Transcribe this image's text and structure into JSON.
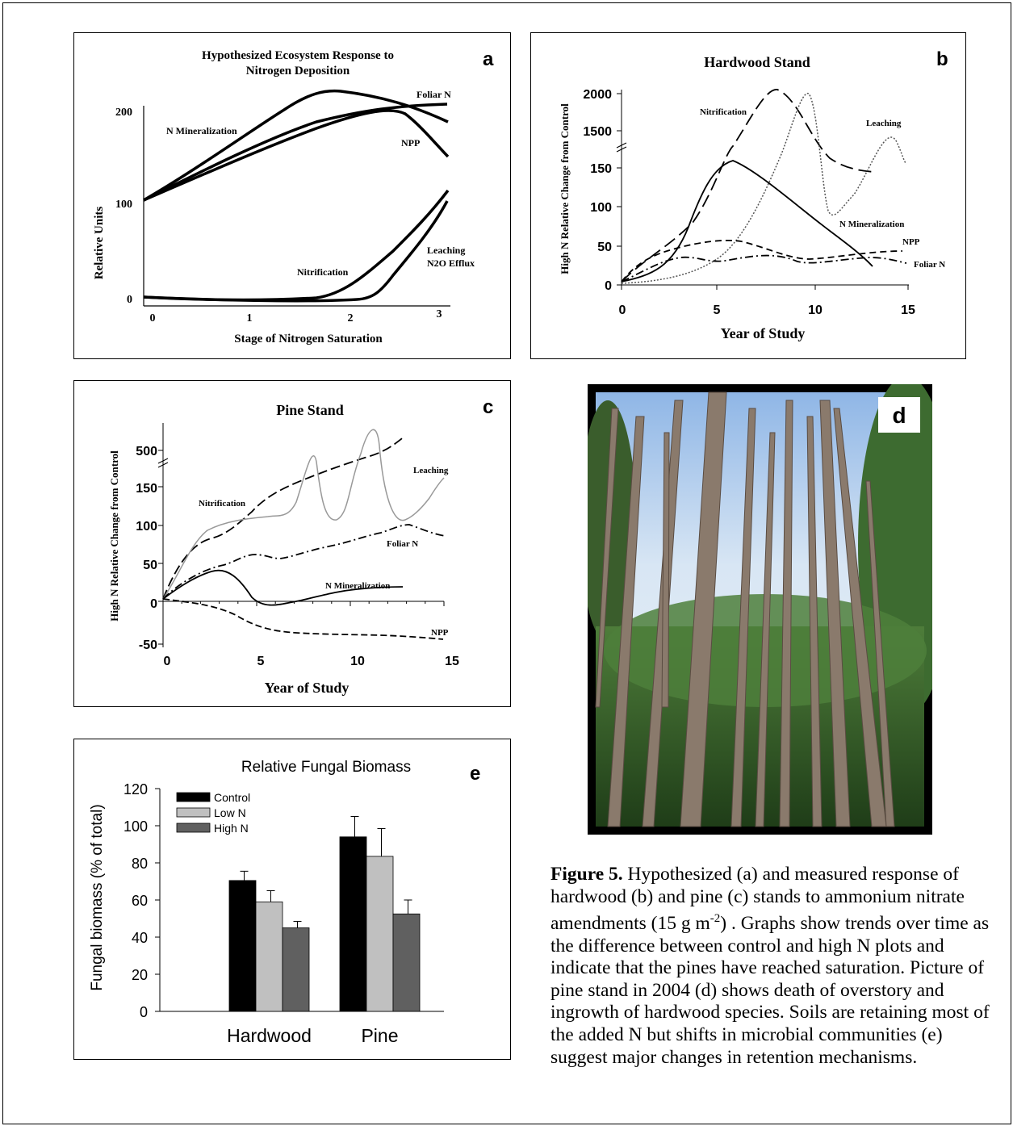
{
  "charts": {
    "a": {
      "panel_letter": "a",
      "title_line1": "Hypothesized Ecosystem Response to",
      "title_line2": "Nitrogen Deposition",
      "ylabel": "Relative Units",
      "xlabel": "Stage of Nitrogen Saturation",
      "xticks": [
        "0",
        "1",
        "2",
        "3"
      ],
      "yticks": [
        "0",
        "100",
        "200"
      ],
      "labels": {
        "foliar": "Foliar N",
        "nmin": "N Mineralization",
        "npp": "NPP",
        "nitrif": "Nitrification",
        "leach1": "Leaching",
        "leach2": "N2O Efflux"
      }
    },
    "b": {
      "panel_letter": "b",
      "title": "Hardwood Stand",
      "ylabel": "High N Relative Change from Control",
      "xlabel": "Year of Study",
      "xticks": [
        "0",
        "5",
        "10",
        "15"
      ],
      "yticks": [
        "0",
        "50",
        "100",
        "150",
        "1500",
        "2000"
      ],
      "labels": {
        "nitrif": "Nitrification",
        "leach": "Leaching",
        "nmin": "N Mineralization",
        "npp": "NPP",
        "foliar": "Foliar N"
      }
    },
    "c": {
      "panel_letter": "c",
      "title": "Pine Stand",
      "ylabel": "High N Relative Change from Control",
      "xlabel": "Year of Study",
      "xticks": [
        "0",
        "5",
        "10",
        "15"
      ],
      "yticks": [
        "-50",
        "0",
        "50",
        "100",
        "150",
        "500"
      ],
      "labels": {
        "nitrif": "Nitrification",
        "leach": "Leaching",
        "foliar": "Foliar N",
        "nmin": "N Mineralization",
        "npp": "NPP"
      }
    },
    "e": {
      "panel_letter": "e",
      "title": "Relative Fungal Biomass",
      "ylabel": "Fungal biomass (% of total)",
      "yticks": [
        "0",
        "20",
        "40",
        "60",
        "80",
        "100",
        "120"
      ]
    }
  },
  "chart_data": [
    {
      "panel": "a",
      "type": "line",
      "title": "Hypothesized Ecosystem Response to Nitrogen Deposition",
      "xlabel": "Stage of Nitrogen Saturation",
      "ylabel": "Relative Units",
      "xlim": [
        0,
        3
      ],
      "series": [
        {
          "name": "N Mineralization",
          "x": [
            0,
            0.5,
            1,
            1.5,
            1.8,
            2.2,
            2.6,
            3
          ],
          "y": [
            100,
            130,
            162,
            192,
            200,
            195,
            185,
            180
          ]
        },
        {
          "name": "Foliar N",
          "x": [
            0,
            0.5,
            1,
            1.5,
            2,
            2.5,
            3
          ],
          "y": [
            100,
            122,
            145,
            163,
            177,
            187,
            190
          ]
        },
        {
          "name": "NPP",
          "x": [
            0,
            0.5,
            1,
            1.5,
            2,
            2.4,
            2.8,
            3
          ],
          "y": [
            100,
            118,
            138,
            158,
            172,
            180,
            162,
            138
          ]
        },
        {
          "name": "Nitrification",
          "x": [
            0,
            1,
            1.5,
            2,
            2.5,
            3
          ],
          "y": [
            0,
            0,
            3,
            18,
            60,
            110
          ]
        },
        {
          "name": "Leaching N2O Efflux",
          "x": [
            0,
            1,
            2,
            2.3,
            2.5,
            2.8,
            3
          ],
          "y": [
            0,
            0,
            0,
            3,
            12,
            50,
            100
          ]
        }
      ]
    },
    {
      "panel": "b",
      "type": "line",
      "title": "Hardwood Stand",
      "xlabel": "Year of Study",
      "ylabel": "High N Relative Change from Control",
      "xlim": [
        0,
        15
      ],
      "series": [
        {
          "name": "Nitrification",
          "x": [
            0,
            2,
            4,
            5.5,
            6.5,
            8,
            9.5,
            11,
            13
          ],
          "y": [
            0,
            30,
            55,
            120,
            150,
            2000,
            1700,
            1500,
            1450
          ]
        },
        {
          "name": "Leaching",
          "x": [
            0,
            2,
            4,
            6,
            8,
            9.5,
            10.5,
            11,
            12.5,
            14,
            15
          ],
          "y": [
            0,
            5,
            15,
            40,
            90,
            150,
            2000,
            1000,
            1300,
            1400,
            1200
          ]
        },
        {
          "name": "N Mineralization",
          "x": [
            0,
            2,
            4,
            6,
            9,
            13
          ],
          "y": [
            0,
            15,
            60,
            158,
            90,
            25
          ]
        },
        {
          "name": "NPP",
          "x": [
            0,
            2,
            4,
            6,
            8,
            10,
            12,
            15
          ],
          "y": [
            0,
            40,
            55,
            60,
            45,
            30,
            35,
            40
          ]
        },
        {
          "name": "Foliar N",
          "x": [
            0,
            2,
            4,
            6,
            8,
            10,
            12,
            15
          ],
          "y": [
            0,
            25,
            35,
            25,
            40,
            30,
            32,
            28
          ]
        }
      ]
    },
    {
      "panel": "c",
      "type": "line",
      "title": "Pine Stand",
      "xlabel": "Year of Study",
      "ylabel": "High N Relative Change from Control",
      "xlim": [
        0,
        15
      ],
      "series": [
        {
          "name": "Nitrification",
          "x": [
            0,
            2,
            4,
            6,
            8,
            10,
            12.5
          ],
          "y": [
            0,
            75,
            100,
            140,
            160,
            175,
            500
          ]
        },
        {
          "name": "Leaching",
          "x": [
            0,
            2,
            4,
            6,
            7.5,
            8.5,
            10,
            11,
            12,
            13,
            14.5
          ],
          "y": [
            0,
            50,
            100,
            110,
            500,
            110,
            150,
            500,
            100,
            110,
            150
          ]
        },
        {
          "name": "Foliar N",
          "x": [
            0,
            2,
            4,
            5,
            6,
            8,
            10,
            12,
            15
          ],
          "y": [
            0,
            40,
            60,
            65,
            55,
            70,
            85,
            105,
            80
          ]
        },
        {
          "name": "N Mineralization",
          "x": [
            0,
            1.5,
            3,
            4.5,
            6,
            8,
            10,
            12.5
          ],
          "y": [
            0,
            35,
            48,
            20,
            0,
            10,
            18,
            18
          ]
        },
        {
          "name": "NPP",
          "x": [
            0,
            2,
            4,
            6,
            9,
            12,
            14.5
          ],
          "y": [
            0,
            -5,
            -25,
            -40,
            -42,
            -42,
            -45
          ]
        }
      ]
    },
    {
      "panel": "e",
      "type": "bar",
      "title": "Relative Fungal Biomass",
      "ylabel": "Fungal biomass (% of total)",
      "ylim": [
        0,
        120
      ],
      "categories": [
        "Hardwood",
        "Pine"
      ],
      "series": [
        {
          "name": "Control",
          "values": [
            70.5,
            94
          ],
          "errors": [
            5,
            11
          ],
          "color": "#000000"
        },
        {
          "name": "Low N",
          "values": [
            59,
            83.5
          ],
          "errors": [
            6,
            15
          ],
          "color": "#c0c0c0"
        },
        {
          "name": "High N",
          "values": [
            45,
            52.5
          ],
          "errors": [
            3.5,
            7.5
          ],
          "color": "#606060"
        }
      ]
    }
  ],
  "photo": {
    "panel_letter": "d"
  },
  "caption": {
    "label": "Figure 5.",
    "text_1": " Hypothesized (a) and measured response of hardwood (b) and pine (c) stands to ammonium nitrate amendments (15 g m",
    "superscript": "-2",
    "text_2": ") . Graphs show trends over time as the difference between control and high N plots and indicate that the pines have reached saturation. Picture of pine stand in 2004 (d) shows death of overstory and ingrowth of hardwood species. Soils are retaining most of the added N but shifts in microbial communities (e) suggest major changes in retention mechanisms."
  },
  "colors": {
    "bar_control": "#000000",
    "bar_low": "#c0c0c0",
    "bar_high": "#606060",
    "leaching_gray": "#999999",
    "sky": "#cfe0f2",
    "foliage": "#2f5e2a"
  }
}
